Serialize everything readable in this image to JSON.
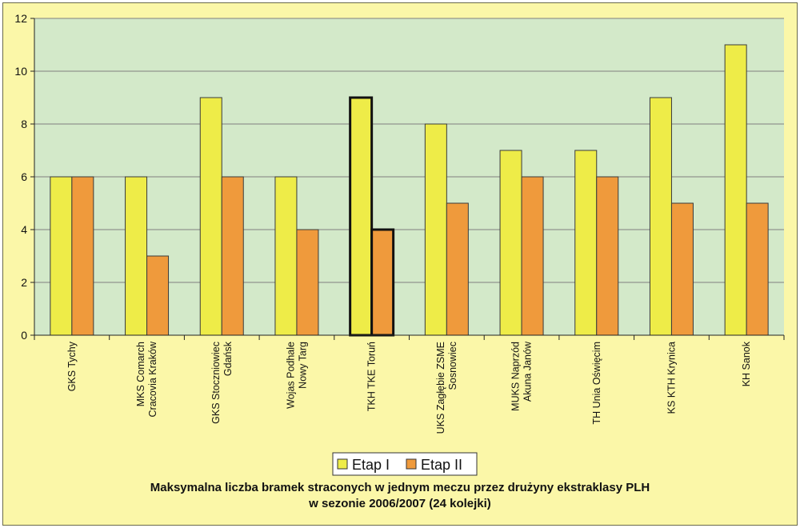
{
  "chart_data": {
    "type": "bar",
    "title_lines": [
      "Maksymalna liczba bramek straconych w jednym meczu przez drużyny ekstraklasy PLH",
      "w sezonie 2006/2007 (24 kolejki)"
    ],
    "categories": [
      [
        "GKS Tychy"
      ],
      [
        "MKS Comarch",
        "Cracovia Kraków"
      ],
      [
        "GKS Stoczniowiec",
        "Gdańsk"
      ],
      [
        "Wojas Podhale",
        "Nowy Targ"
      ],
      [
        "TKH TKE Toruń"
      ],
      [
        "UKS Zagłębie ZSME",
        "Sosnowiec"
      ],
      [
        "MUKS Naprzód",
        "Akuna Janów"
      ],
      [
        "TH Unia Oświęcim"
      ],
      [
        "KS KTH Krynica"
      ],
      [
        "KH Sanok"
      ]
    ],
    "series": [
      {
        "name": "Etap I",
        "values": [
          6,
          6,
          9,
          6,
          9,
          8,
          7,
          7,
          9,
          11
        ],
        "color": "#eeec48"
      },
      {
        "name": "Etap II",
        "values": [
          6,
          3,
          6,
          4,
          4,
          5,
          6,
          6,
          5,
          5
        ],
        "color": "#ef9a3c"
      }
    ],
    "highlight_index": 4,
    "ylim": [
      0,
      12
    ],
    "yticks": [
      0,
      2,
      4,
      6,
      8,
      10,
      12
    ],
    "grid": true,
    "legend_position": "bottom",
    "colors": {
      "plot_background": "#d3e9c9",
      "frame_background": "#fbf7a8",
      "grid": "#808080"
    }
  }
}
